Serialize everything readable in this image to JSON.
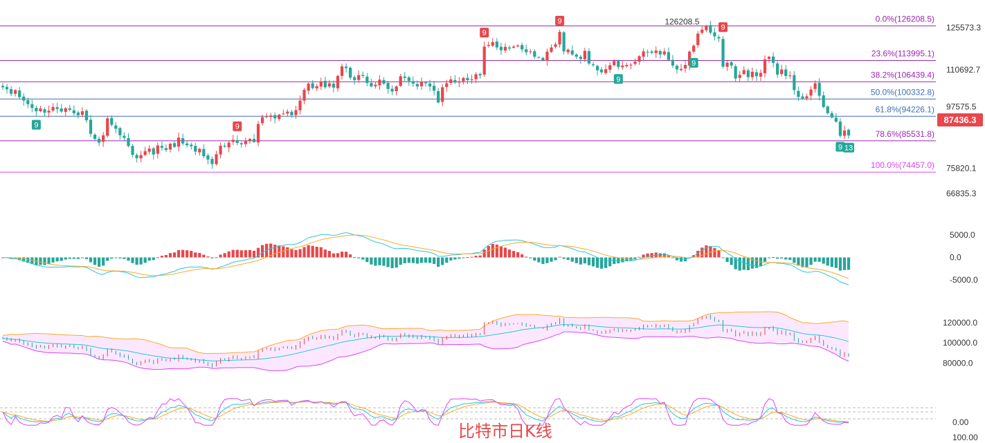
{
  "title": "比特市日K线",
  "last_price": "87436.3",
  "colors": {
    "up": "#e8474b",
    "down": "#26a69a",
    "fib": "#9c27b0",
    "fib_blue": "#3f6fb5",
    "ma_fast": "#26c6da",
    "ma_slow": "#ffa726",
    "bb": "#e040fb"
  },
  "chart_data": {
    "type": "candlestick",
    "main": {
      "y_ticks": [
        "125573.3",
        "110692.7",
        "97575.5",
        "87436.3",
        "75820.1",
        "66835.3"
      ],
      "ylim": [
        62000,
        130500
      ],
      "fib_levels": [
        {
          "label": "0.0%(126208.5)",
          "value": 126208.5
        },
        {
          "label": "23.6%(113995.1)",
          "value": 113995.1
        },
        {
          "label": "38.2%(106439.4)",
          "value": 106439.4
        },
        {
          "label": "50.0%(100332.8)",
          "value": 100332.8
        },
        {
          "label": "61.8%(94226.1)",
          "value": 94226.1
        },
        {
          "label": "78.6%(85531.8)",
          "value": 85531.8
        },
        {
          "label": "100.0%(74457.0)",
          "value": 74457.0
        }
      ],
      "high_annotation": {
        "label": "126208.5",
        "value": 126208.5
      },
      "td_markers": [
        {
          "label": "9",
          "type": "sell",
          "index": 115
        },
        {
          "label": "9",
          "type": "sell",
          "index": 133
        },
        {
          "label": "9",
          "type": "sell",
          "index": 172
        },
        {
          "label": "9",
          "type": "sell",
          "index": 56
        },
        {
          "label": "9",
          "type": "buy",
          "index": 8
        },
        {
          "label": "9",
          "type": "buy",
          "index": 147
        },
        {
          "label": "9",
          "type": "buy",
          "index": 165
        },
        {
          "label": "9",
          "type": "buy",
          "index": 200
        },
        {
          "label": "13",
          "type": "buy",
          "index": 203
        }
      ]
    },
    "macd": {
      "y_ticks": [
        "5000.0",
        "0.0",
        "-5000.0"
      ],
      "ylim": [
        -6500,
        6500
      ]
    },
    "boll": {
      "y_ticks": [
        "120000.0",
        "100000.0",
        "80000.0"
      ],
      "ylim": [
        70000,
        135000
      ]
    },
    "kdj": {
      "y_ticks": [
        "0.00",
        "100.00"
      ]
    },
    "closes": [
      104500,
      103800,
      102200,
      103500,
      101000,
      99800,
      98500,
      97200,
      96000,
      97000,
      95500,
      96200,
      97500,
      96800,
      95900,
      97100,
      96500,
      95300,
      94600,
      96000,
      92800,
      88000,
      86200,
      84900,
      87500,
      93500,
      91200,
      89800,
      87500,
      86600,
      83700,
      80600,
      79400,
      80500,
      81900,
      82800,
      80700,
      83900,
      83100,
      82300,
      84500,
      83400,
      86700,
      84600,
      84000,
      83600,
      81700,
      82700,
      80100,
      78900,
      77300,
      80800,
      83800,
      83500,
      84900,
      85900,
      84800,
      84300,
      85400,
      86200,
      85100,
      91500,
      93900,
      94200,
      94500,
      93500,
      94800,
      95200,
      95900,
      94600,
      96400,
      99800,
      103600,
      105800,
      104200,
      104900,
      106600,
      104500,
      105900,
      104400,
      108500,
      111900,
      111300,
      107900,
      107000,
      108800,
      108500,
      106000,
      104800,
      105400,
      107200,
      105800,
      103900,
      103000,
      104800,
      108400,
      107800,
      106700,
      105800,
      104800,
      106500,
      105900,
      104800,
      103300,
      99100,
      104500,
      105900,
      107300,
      106200,
      106400,
      107800,
      107000,
      107300,
      109100,
      108700,
      118900,
      119500,
      120500,
      118600,
      117600,
      118800,
      118200,
      118900,
      119300,
      117900,
      116900,
      117200,
      115300,
      115100,
      114100,
      117100,
      118600,
      119700,
      124100,
      117200,
      117800,
      116100,
      115300,
      114500,
      117400,
      112900,
      112300,
      110500,
      109800,
      110900,
      112300,
      113800,
      111700,
      112200,
      112400,
      112500,
      113600,
      115500,
      117200,
      116900,
      116700,
      117500,
      116100,
      117200,
      114200,
      112200,
      110800,
      111000,
      112400,
      117100,
      119200,
      123500,
      124900,
      126200,
      123800,
      122500,
      121800,
      111800,
      113200,
      112200,
      107600,
      108900,
      110600,
      108100,
      110000,
      108400,
      109600,
      114400,
      115300,
      113100,
      109000,
      110800,
      108500,
      108700,
      103500,
      101100,
      100500,
      101300,
      103700,
      105900,
      101500,
      97500,
      95300,
      93800,
      92300,
      87300,
      89200,
      87436
    ]
  }
}
